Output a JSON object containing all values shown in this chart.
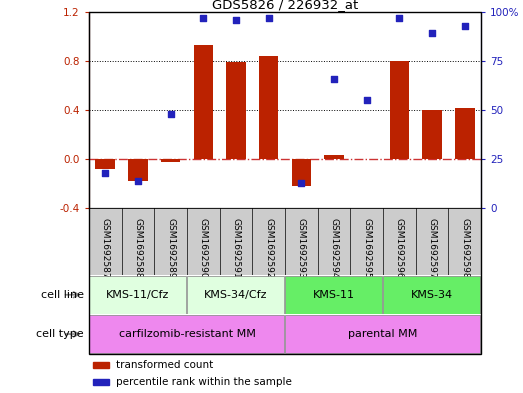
{
  "title": "GDS5826 / 226932_at",
  "samples": [
    "GSM1692587",
    "GSM1692588",
    "GSM1692589",
    "GSM1692590",
    "GSM1692591",
    "GSM1692592",
    "GSM1692593",
    "GSM1692594",
    "GSM1692595",
    "GSM1692596",
    "GSM1692597",
    "GSM1692598"
  ],
  "transformed_count": [
    -0.08,
    -0.18,
    -0.02,
    0.93,
    0.79,
    0.84,
    -0.22,
    0.03,
    0.0,
    0.8,
    0.4,
    0.42
  ],
  "percentile_rank": [
    18,
    14,
    48,
    97,
    96,
    97,
    13,
    66,
    55,
    97,
    89,
    93
  ],
  "ylim_left": [
    -0.4,
    1.2
  ],
  "ylim_right": [
    0,
    100
  ],
  "yticks_left": [
    -0.4,
    0.0,
    0.4,
    0.8,
    1.2
  ],
  "yticks_right": [
    0,
    25,
    50,
    75,
    100
  ],
  "cell_line_groups": [
    {
      "label": "KMS-11/Cfz",
      "start": 0,
      "end": 2,
      "color": "#e0ffe0"
    },
    {
      "label": "KMS-34/Cfz",
      "start": 3,
      "end": 5,
      "color": "#e0ffe0"
    },
    {
      "label": "KMS-11",
      "start": 6,
      "end": 8,
      "color": "#66ee66"
    },
    {
      "label": "KMS-34",
      "start": 9,
      "end": 11,
      "color": "#66ee66"
    }
  ],
  "cell_type_groups": [
    {
      "label": "carfilzomib-resistant MM",
      "start": 0,
      "end": 5,
      "color": "#ee88ee"
    },
    {
      "label": "parental MM",
      "start": 6,
      "end": 11,
      "color": "#ee88ee"
    }
  ],
  "bar_color": "#bb2200",
  "dot_color": "#2222bb",
  "zero_line_color": "#cc3333",
  "grid_color": "#000000",
  "sample_box_color": "#cccccc",
  "legend_items": [
    {
      "label": "transformed count",
      "color": "#bb2200"
    },
    {
      "label": "percentile rank within the sample",
      "color": "#2222bb"
    }
  ]
}
